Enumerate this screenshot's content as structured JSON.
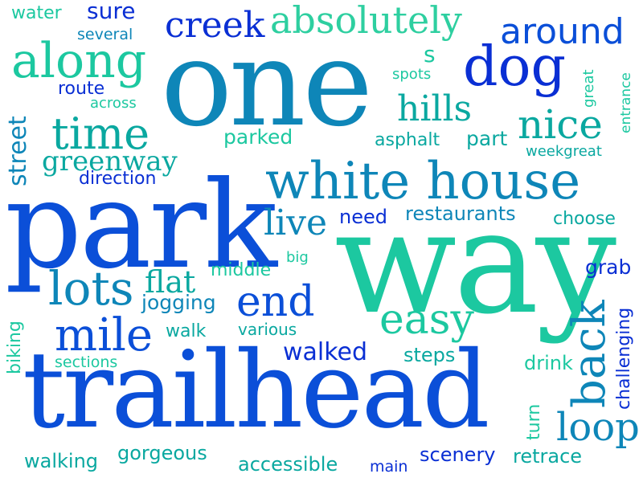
{
  "palette": {
    "blue": "#0a2fd4",
    "royal": "#0b4fd8",
    "steel": "#0e86b8",
    "teal": "#0aa8a0",
    "mint": "#1cc8a0",
    "aqua": "#2ecfc0"
  },
  "words": {
    "water": "water",
    "sure": "sure",
    "several": "several",
    "creek": "creek",
    "absolutely": "absolutely",
    "around": "around",
    "along": "along",
    "one": "one",
    "s": "s",
    "dog": "dog",
    "great": "great",
    "entrance": "entrance",
    "route": "route",
    "spots": "spots",
    "across": "across",
    "hills": "hills",
    "street": "street",
    "time": "time",
    "nice": "nice",
    "parked": "parked",
    "asphalt": "asphalt",
    "part": "part",
    "weekgreat": "weekgreat",
    "greenway": "greenway",
    "direction": "direction",
    "white_house": "white house",
    "park": "park",
    "live": "live",
    "need": "need",
    "restaurants": "restaurants",
    "choose": "choose",
    "way": "way",
    "big": "big",
    "middle": "middle",
    "grab": "grab",
    "lots": "lots",
    "flat": "flat",
    "end": "end",
    "jogging": "jogging",
    "challenging": "challenging",
    "easy": "easy",
    "mile": "mile",
    "walk": "walk",
    "various": "various",
    "back": "back",
    "biking": "biking",
    "walked": "walked",
    "steps": "steps",
    "drink": "drink",
    "sections": "sections",
    "trailhead": "trailhead",
    "turn": "turn",
    "loop": "loop",
    "walking": "walking",
    "gorgeous": "gorgeous",
    "accessible": "accessible",
    "main": "main",
    "scenery": "scenery",
    "retrace": "retrace"
  }
}
